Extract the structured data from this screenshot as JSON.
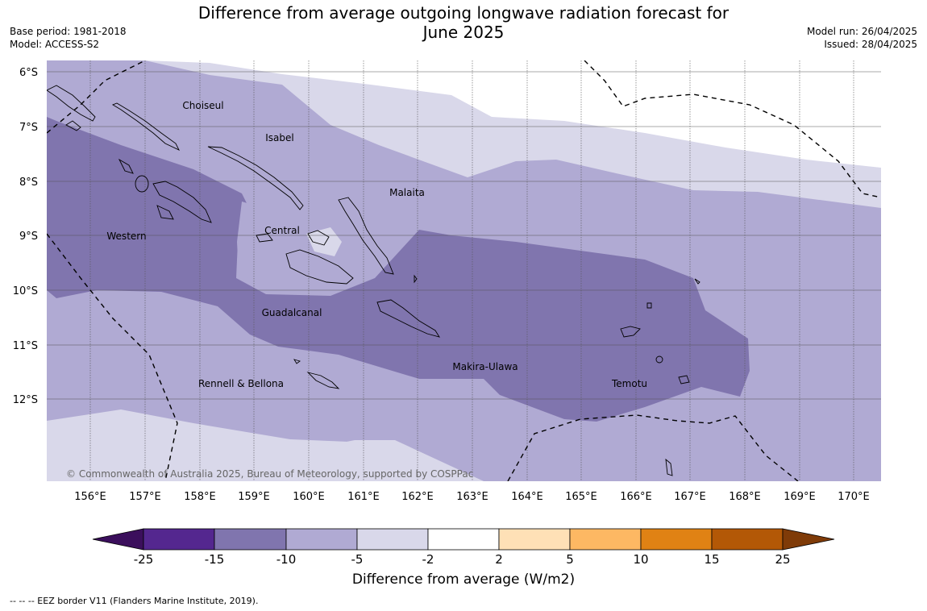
{
  "header": {
    "title_line1": "Difference from average outgoing longwave radiation forecast for",
    "title_line2": "June 2025",
    "base_period": "Base period: 1981-2018",
    "model": "Model: ACCESS-S2",
    "model_run": "Model run: 26/04/2025",
    "issued": "Issued: 28/04/2025"
  },
  "map": {
    "lat_labels": [
      "6°S",
      "7°S",
      "8°S",
      "9°S",
      "10°S",
      "11°S",
      "12°S"
    ],
    "lon_labels": [
      "156°E",
      "157°E",
      "158°E",
      "159°E",
      "160°E",
      "161°E",
      "162°E",
      "163°E",
      "164°E",
      "165°E",
      "166°E",
      "167°E",
      "168°E",
      "169°E",
      "170°E"
    ],
    "place_labels": [
      "Choiseul",
      "Isabel",
      "Malaita",
      "Western",
      "Central",
      "Guadalcanal",
      "Makira-Ulawa",
      "Rennell & Bellona",
      "Temotu"
    ],
    "copyright": "© Commonwealth of Australia 2025, Bureau of Meteorology, supported by COSPPac",
    "colors": {
      "land_line": "#000000",
      "grid": "#555555",
      "level_minus15_to_minus10": "#8075ae",
      "level_minus10_to_minus5": "#b0aad3",
      "level_minus5_to_minus2": "#d9d8ea",
      "level_minus2_to_2": "#ffffff"
    }
  },
  "colorbar": {
    "ticks": [
      "-25",
      "-15",
      "-10",
      "-5",
      "-2",
      "2",
      "5",
      "10",
      "15",
      "25"
    ],
    "colors": [
      "#3b0f5c",
      "#54278f",
      "#8075ae",
      "#b0aad3",
      "#d9d8ea",
      "#ffffff",
      "#fee0b6",
      "#fdb863",
      "#e08214",
      "#b35806",
      "#7f3b08"
    ],
    "title": "Difference from average (W/m2)"
  },
  "footer": {
    "eez_note": "--  --  -- EEZ border V11 (Flanders Marine Institute, 2019)."
  }
}
